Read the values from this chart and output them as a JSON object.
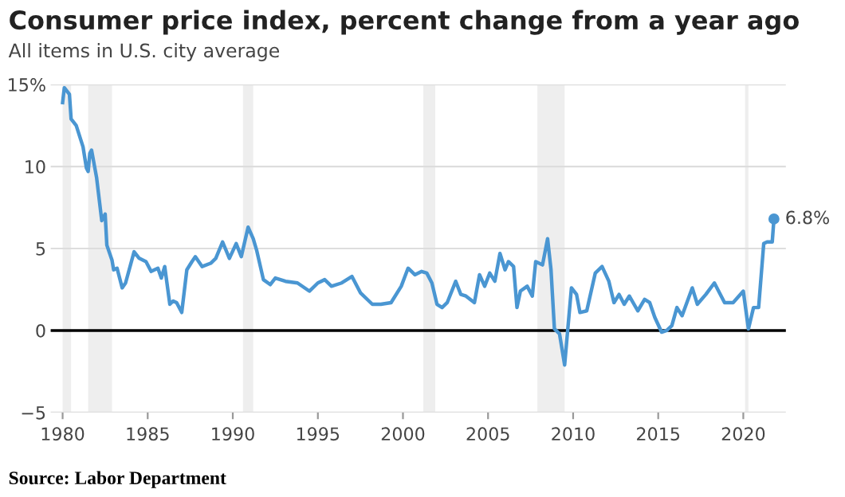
{
  "chart_data": {
    "type": "line",
    "title": "Consumer price index, percent change from a year ago",
    "subtitle": "All items in U.S. city average",
    "annotations": [
      "Source: Labor Department"
    ],
    "xlim": [
      1979.3,
      2022.5
    ],
    "xticks": [
      1980,
      1985,
      1990,
      1995,
      2000,
      2005,
      2010,
      2015,
      2020
    ],
    "ylim": [
      -5,
      15
    ],
    "yticks": [
      {
        "value": -5,
        "label": "−5"
      },
      0,
      5,
      10,
      {
        "value": 15,
        "label": "15%"
      }
    ],
    "grid": "y",
    "ref_lines": [
      {
        "axis": "y",
        "value": 0,
        "color": "#000000"
      }
    ],
    "bands": [
      {
        "axis": "x",
        "from": 1980.0,
        "to": 1980.5,
        "color": "#eeeeee"
      },
      {
        "axis": "x",
        "from": 1981.5,
        "to": 1982.9,
        "color": "#eeeeee"
      },
      {
        "axis": "x",
        "from": 1990.6,
        "to": 1991.2,
        "color": "#eeeeee"
      },
      {
        "axis": "x",
        "from": 2001.2,
        "to": 2001.9,
        "color": "#eeeeee"
      },
      {
        "axis": "x",
        "from": 2007.9,
        "to": 2009.5,
        "color": "#eeeeee"
      },
      {
        "axis": "x",
        "from": 2020.1,
        "to": 2020.3,
        "color": "#eeeeee"
      }
    ],
    "series": [
      {
        "color": "#4a96d2",
        "x": [
          1980.0,
          1980.1,
          1980.4,
          1980.5,
          1980.8,
          1981.2,
          1981.4,
          1981.5,
          1981.6,
          1981.7,
          1982.0,
          1982.3,
          1982.5,
          1982.6,
          1982.9,
          1983.0,
          1983.2,
          1983.5,
          1983.7,
          1984.2,
          1984.5,
          1984.9,
          1985.2,
          1985.6,
          1985.8,
          1986.0,
          1986.3,
          1986.5,
          1986.7,
          1987.0,
          1987.3,
          1987.6,
          1987.8,
          1988.2,
          1988.7,
          1989.0,
          1989.4,
          1989.8,
          1990.2,
          1990.5,
          1990.9,
          1991.2,
          1991.4,
          1991.8,
          1992.2,
          1992.5,
          1993.1,
          1993.8,
          1994.5,
          1995.0,
          1995.4,
          1995.8,
          1996.4,
          1997.0,
          1997.5,
          1998.2,
          1998.7,
          1999.3,
          1999.9,
          2000.3,
          2000.7,
          2001.1,
          2001.4,
          2001.7,
          2002.0,
          2002.3,
          2002.6,
          2003.1,
          2003.4,
          2003.7,
          2004.2,
          2004.5,
          2004.8,
          2005.1,
          2005.4,
          2005.7,
          2006.0,
          2006.2,
          2006.5,
          2006.7,
          2006.9,
          2007.3,
          2007.6,
          2007.8,
          2008.2,
          2008.5,
          2008.7,
          2008.9,
          2009.2,
          2009.5,
          2009.9,
          2010.2,
          2010.4,
          2010.8,
          2011.3,
          2011.7,
          2012.1,
          2012.4,
          2012.7,
          2013.0,
          2013.3,
          2013.8,
          2014.2,
          2014.5,
          2014.8,
          2015.2,
          2015.5,
          2015.8,
          2016.1,
          2016.4,
          2017.0,
          2017.3,
          2017.8,
          2018.3,
          2018.9,
          2019.4,
          2020.0,
          2020.3,
          2020.6,
          2020.9,
          2021.2,
          2021.4,
          2021.7,
          2021.8
        ],
        "values": [
          13.9,
          14.8,
          14.4,
          12.9,
          12.5,
          11.2,
          9.9,
          9.7,
          10.8,
          11.0,
          9.3,
          6.7,
          7.1,
          5.2,
          4.3,
          3.7,
          3.8,
          2.6,
          2.9,
          4.8,
          4.4,
          4.2,
          3.6,
          3.8,
          3.2,
          3.9,
          1.6,
          1.8,
          1.7,
          1.1,
          3.7,
          4.2,
          4.5,
          3.9,
          4.1,
          4.4,
          5.4,
          4.4,
          5.3,
          4.5,
          6.3,
          5.6,
          4.9,
          3.1,
          2.8,
          3.2,
          3.0,
          2.9,
          2.4,
          2.9,
          3.1,
          2.7,
          2.9,
          3.3,
          2.3,
          1.6,
          1.6,
          1.7,
          2.7,
          3.8,
          3.4,
          3.6,
          3.5,
          2.9,
          1.6,
          1.4,
          1.7,
          3.0,
          2.2,
          2.1,
          1.7,
          3.4,
          2.7,
          3.5,
          3.0,
          4.7,
          3.7,
          4.2,
          3.9,
          1.4,
          2.4,
          2.7,
          2.1,
          4.2,
          4.0,
          5.6,
          3.7,
          0.1,
          -0.2,
          -2.1,
          2.6,
          2.2,
          1.1,
          1.2,
          3.5,
          3.9,
          3.0,
          1.7,
          2.2,
          1.6,
          2.1,
          1.2,
          1.9,
          1.7,
          0.8,
          -0.1,
          0.0,
          0.3,
          1.4,
          0.9,
          2.6,
          1.6,
          2.2,
          2.9,
          1.7,
          1.7,
          2.4,
          0.1,
          1.4,
          1.4,
          5.3,
          5.4,
          5.4,
          6.8
        ],
        "value_labels": [
          null,
          null,
          null,
          null,
          null,
          null,
          null,
          null,
          null,
          null,
          null,
          null,
          null,
          null,
          null,
          null,
          null,
          null,
          null,
          null,
          null,
          null,
          null,
          null,
          null,
          null,
          null,
          null,
          null,
          null,
          null,
          null,
          null,
          null,
          null,
          null,
          null,
          null,
          null,
          null,
          null,
          null,
          null,
          null,
          null,
          null,
          null,
          null,
          null,
          null,
          null,
          null,
          null,
          null,
          null,
          null,
          null,
          null,
          null,
          null,
          null,
          null,
          null,
          null,
          null,
          null,
          null,
          null,
          null,
          null,
          null,
          null,
          null,
          null,
          null,
          null,
          null,
          null,
          null,
          null,
          null,
          null,
          null,
          null,
          null,
          null,
          null,
          null,
          null,
          null,
          null,
          null,
          null,
          null,
          null,
          null,
          null,
          null,
          null,
          null,
          null,
          null,
          null,
          null,
          null,
          null,
          null,
          null,
          null,
          null,
          null,
          null,
          null,
          null,
          null,
          null,
          null,
          null,
          null,
          null,
          null,
          null,
          null,
          "6.8%"
        ]
      }
    ]
  }
}
